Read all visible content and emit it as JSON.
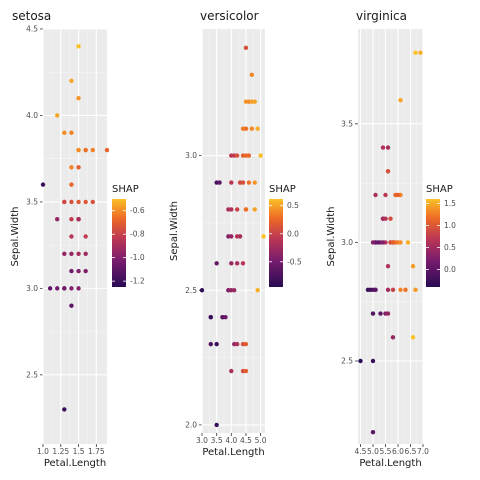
{
  "chart_data": [
    {
      "type": "scatter",
      "title": "setosa",
      "xlabel": "Petal.Length",
      "ylabel": "Sepal.Width",
      "xlim": [
        1.0,
        1.9
      ],
      "ylim": [
        2.1,
        4.5
      ],
      "xticks": [
        1.0,
        1.25,
        1.5,
        1.75
      ],
      "xtick_labels": [
        "1.0",
        "1.25",
        "1.5",
        "1.75"
      ],
      "yticks": [
        2.5,
        3.0,
        3.5,
        4.0,
        4.5
      ],
      "ytick_labels": [
        "2.5",
        "3.0",
        "3.5",
        "4.0",
        "4.5"
      ],
      "legend": {
        "title": "SHAP",
        "placement": "right",
        "range": [
          -1.25,
          -0.5
        ],
        "ticks": [
          -0.6,
          -0.8,
          -1.0,
          -1.2
        ],
        "tick_labels": [
          "-0.6",
          "-0.8",
          "-1.0",
          "-1.2"
        ]
      },
      "series": [
        {
          "x": [
            1.5,
            1.4,
            1.5,
            1.2,
            1.3,
            1.4,
            1.7,
            1.5,
            1.5,
            1.6,
            1.6,
            1.9,
            1.4,
            1.5,
            1.4,
            1.3,
            1.7,
            1.5,
            1.6,
            1.4,
            1.3,
            1.5,
            1.4,
            1.5,
            1.2,
            1.4,
            1.6,
            1.4,
            1.3,
            1.5,
            1.1,
            1.5,
            1.0,
            1.4,
            1.6,
            1.2,
            1.3,
            1.4,
            1.3,
            1.5,
            1.6,
            1.4,
            1.3,
            1.5
          ],
          "y": [
            4.4,
            4.2,
            4.1,
            4.0,
            3.9,
            3.9,
            3.8,
            3.8,
            3.8,
            3.8,
            3.8,
            3.8,
            3.7,
            3.7,
            3.6,
            3.5,
            3.5,
            3.5,
            3.5,
            3.5,
            3.5,
            3.4,
            3.4,
            3.4,
            3.4,
            3.3,
            3.3,
            3.2,
            3.2,
            3.2,
            3.0,
            3.0,
            3.6,
            3.1,
            3.1,
            3.0,
            3.0,
            3.0,
            3.0,
            3.1,
            3.2,
            2.9,
            2.3,
            3.4
          ],
          "shap": [
            -0.5,
            -0.55,
            -0.58,
            -0.55,
            -0.6,
            -0.62,
            -0.62,
            -0.58,
            -0.6,
            -0.62,
            -0.65,
            -0.68,
            -0.62,
            -0.7,
            -0.68,
            -0.72,
            -0.75,
            -0.72,
            -0.72,
            -0.75,
            -0.78,
            -0.8,
            -0.82,
            -0.8,
            -0.95,
            -0.85,
            -0.82,
            -0.95,
            -0.95,
            -0.9,
            -1.1,
            -1.0,
            -1.2,
            -1.05,
            -1.0,
            -1.05,
            -1.1,
            -1.0,
            -1.05,
            -1.0,
            -0.92,
            -1.1,
            -1.2,
            -0.9
          ]
        }
      ]
    },
    {
      "type": "scatter",
      "title": "versicolor",
      "xlabel": "Petal.Length",
      "ylabel": "Sepal.Width",
      "xlim": [
        3.0,
        5.15
      ],
      "ylim": [
        1.97,
        3.47
      ],
      "xticks": [
        3.0,
        3.5,
        4.0,
        4.5,
        5.0
      ],
      "xtick_labels": [
        "3.0",
        "3.5",
        "4.0",
        "4.5",
        "5.0"
      ],
      "yticks": [
        2.0,
        2.5,
        3.0
      ],
      "ytick_labels": [
        "2.0",
        "2.5",
        "3.0"
      ],
      "legend": {
        "title": "SHAP",
        "placement": "right",
        "range": [
          -0.95,
          0.62
        ],
        "ticks": [
          0.5,
          0.0,
          -0.5
        ],
        "tick_labels": [
          "0.5",
          "0.0",
          "-0.5"
        ]
      },
      "series": [
        {
          "x": [
            4.5,
            4.7,
            4.5,
            4.6,
            4.7,
            4.8,
            4.4,
            4.5,
            4.7,
            4.9,
            4.0,
            4.1,
            4.2,
            3.5,
            4.4,
            4.5,
            4.6,
            4.4,
            4.8,
            5.0,
            3.9,
            4.0,
            4.2,
            3.9,
            4.3,
            4.0,
            4.6,
            4.5,
            4.8,
            4.3,
            4.0,
            4.3,
            4.5,
            3.5,
            4.0,
            4.2,
            3.0,
            3.3,
            3.7,
            3.8,
            3.9,
            4.1,
            4.4,
            4.0,
            4.9,
            3.5,
            4.2,
            4.5,
            3.3,
            3.9,
            3.5,
            4.0,
            4.1,
            4.4,
            4.2,
            4.4,
            3.3,
            4.5,
            5.1,
            3.6,
            3.7
          ],
          "y": [
            3.4,
            3.3,
            3.2,
            3.2,
            3.2,
            3.2,
            3.1,
            3.1,
            3.1,
            3.1,
            3.0,
            3.0,
            3.0,
            2.9,
            3.0,
            3.0,
            3.0,
            2.9,
            2.9,
            3.0,
            2.8,
            2.8,
            2.8,
            2.7,
            2.9,
            2.9,
            2.9,
            2.8,
            2.8,
            2.9,
            2.7,
            2.7,
            2.8,
            2.6,
            2.6,
            2.7,
            2.5,
            2.4,
            2.4,
            2.4,
            2.5,
            2.5,
            2.6,
            2.5,
            2.5,
            2.3,
            2.3,
            2.3,
            2.3,
            2.5,
            2.0,
            2.2,
            2.3,
            2.2,
            2.6,
            2.3,
            2.4,
            2.2,
            2.7,
            2.9,
            2.4
          ],
          "shap": [
            0.1,
            0.4,
            0.45,
            0.4,
            0.5,
            0.5,
            0.35,
            0.3,
            0.4,
            0.55,
            -0.1,
            -0.05,
            0.1,
            -0.75,
            0.2,
            0.25,
            0.25,
            0.1,
            0.45,
            0.6,
            -0.2,
            -0.15,
            0.0,
            -0.4,
            0.3,
            -0.1,
            0.3,
            0.25,
            0.5,
            0.05,
            -0.3,
            -0.2,
            0.3,
            -0.6,
            -0.3,
            -0.15,
            -0.9,
            -0.8,
            -0.6,
            -0.55,
            -0.5,
            -0.3,
            -0.1,
            -0.3,
            0.55,
            -0.85,
            -0.15,
            0.2,
            -0.75,
            -0.4,
            -0.85,
            -0.2,
            -0.3,
            0.1,
            -0.2,
            0.1,
            -0.85,
            0.2,
            0.65,
            -0.65,
            -0.65
          ]
        }
      ]
    },
    {
      "type": "scatter",
      "title": "virginica",
      "xlabel": "Petal.Length",
      "ylabel": "Sepal.Width",
      "xlim": [
        4.4,
        7.0
      ],
      "ylim": [
        2.15,
        3.9
      ],
      "xticks": [
        4.5,
        5.0,
        5.5,
        6.0,
        6.5,
        7.0
      ],
      "xtick_labels": [
        "4.5",
        "5.0",
        "5.5",
        "6.0",
        "6.5",
        "7.0"
      ],
      "yticks": [
        2.5,
        3.0,
        3.5
      ],
      "ytick_labels": [
        "2.5",
        "3.0",
        "3.5"
      ],
      "legend": {
        "title": "SHAP",
        "placement": "right",
        "range": [
          -0.4,
          1.6
        ],
        "ticks": [
          1.5,
          1.0,
          0.5,
          0.0
        ],
        "tick_labels": [
          "1.5",
          "1.0",
          "0.5",
          "0.0"
        ]
      },
      "series": [
        {
          "x": [
            6.7,
            6.9,
            6.1,
            5.4,
            5.6,
            5.6,
            5.6,
            6.1,
            5.9,
            6.0,
            5.1,
            5.5,
            5.4,
            5.7,
            5.4,
            5.5,
            5.8,
            5.1,
            5.3,
            5.7,
            5.0,
            5.5,
            5.1,
            5.2,
            5.4,
            5.7,
            5.8,
            5.8,
            5.9,
            6.0,
            6.1,
            6.4,
            5.6,
            5.0,
            5.1,
            5.6,
            5.1,
            5.8,
            6.3,
            6.7,
            4.8,
            4.9,
            5.0,
            5.5,
            5.6,
            5.3,
            5.8,
            6.6,
            6.1,
            6.6,
            4.5,
            5.0,
            5.0
          ],
          "y": [
            3.8,
            3.8,
            3.6,
            3.4,
            3.4,
            3.3,
            3.3,
            3.2,
            3.2,
            3.2,
            3.2,
            3.2,
            3.1,
            3.1,
            3.1,
            3.1,
            3.0,
            3.0,
            3.0,
            3.0,
            3.0,
            3.0,
            3.0,
            3.0,
            3.0,
            3.0,
            3.0,
            3.0,
            3.0,
            3.0,
            3.0,
            3.0,
            2.9,
            2.8,
            2.8,
            2.8,
            2.8,
            2.8,
            2.8,
            2.8,
            2.8,
            2.8,
            2.7,
            2.7,
            2.7,
            2.7,
            2.6,
            2.9,
            2.8,
            2.6,
            2.5,
            2.5,
            2.2
          ],
          "shap": [
            1.6,
            1.5,
            1.45,
            0.6,
            0.55,
            0.75,
            0.95,
            1.3,
            1.1,
            1.1,
            0.55,
            0.7,
            0.45,
            0.9,
            0.5,
            0.6,
            0.9,
            0.35,
            0.2,
            0.8,
            0.3,
            0.65,
            0.15,
            0.05,
            0.3,
            0.9,
            1.0,
            1.05,
            1.15,
            1.25,
            1.35,
            1.5,
            0.6,
            0.0,
            0.05,
            0.5,
            0.0,
            0.8,
            1.2,
            1.4,
            -0.3,
            -0.2,
            -0.1,
            0.3,
            0.4,
            0.0,
            0.4,
            1.4,
            1.3,
            1.6,
            -0.4,
            -0.3,
            0.0
          ]
        }
      ]
    }
  ]
}
